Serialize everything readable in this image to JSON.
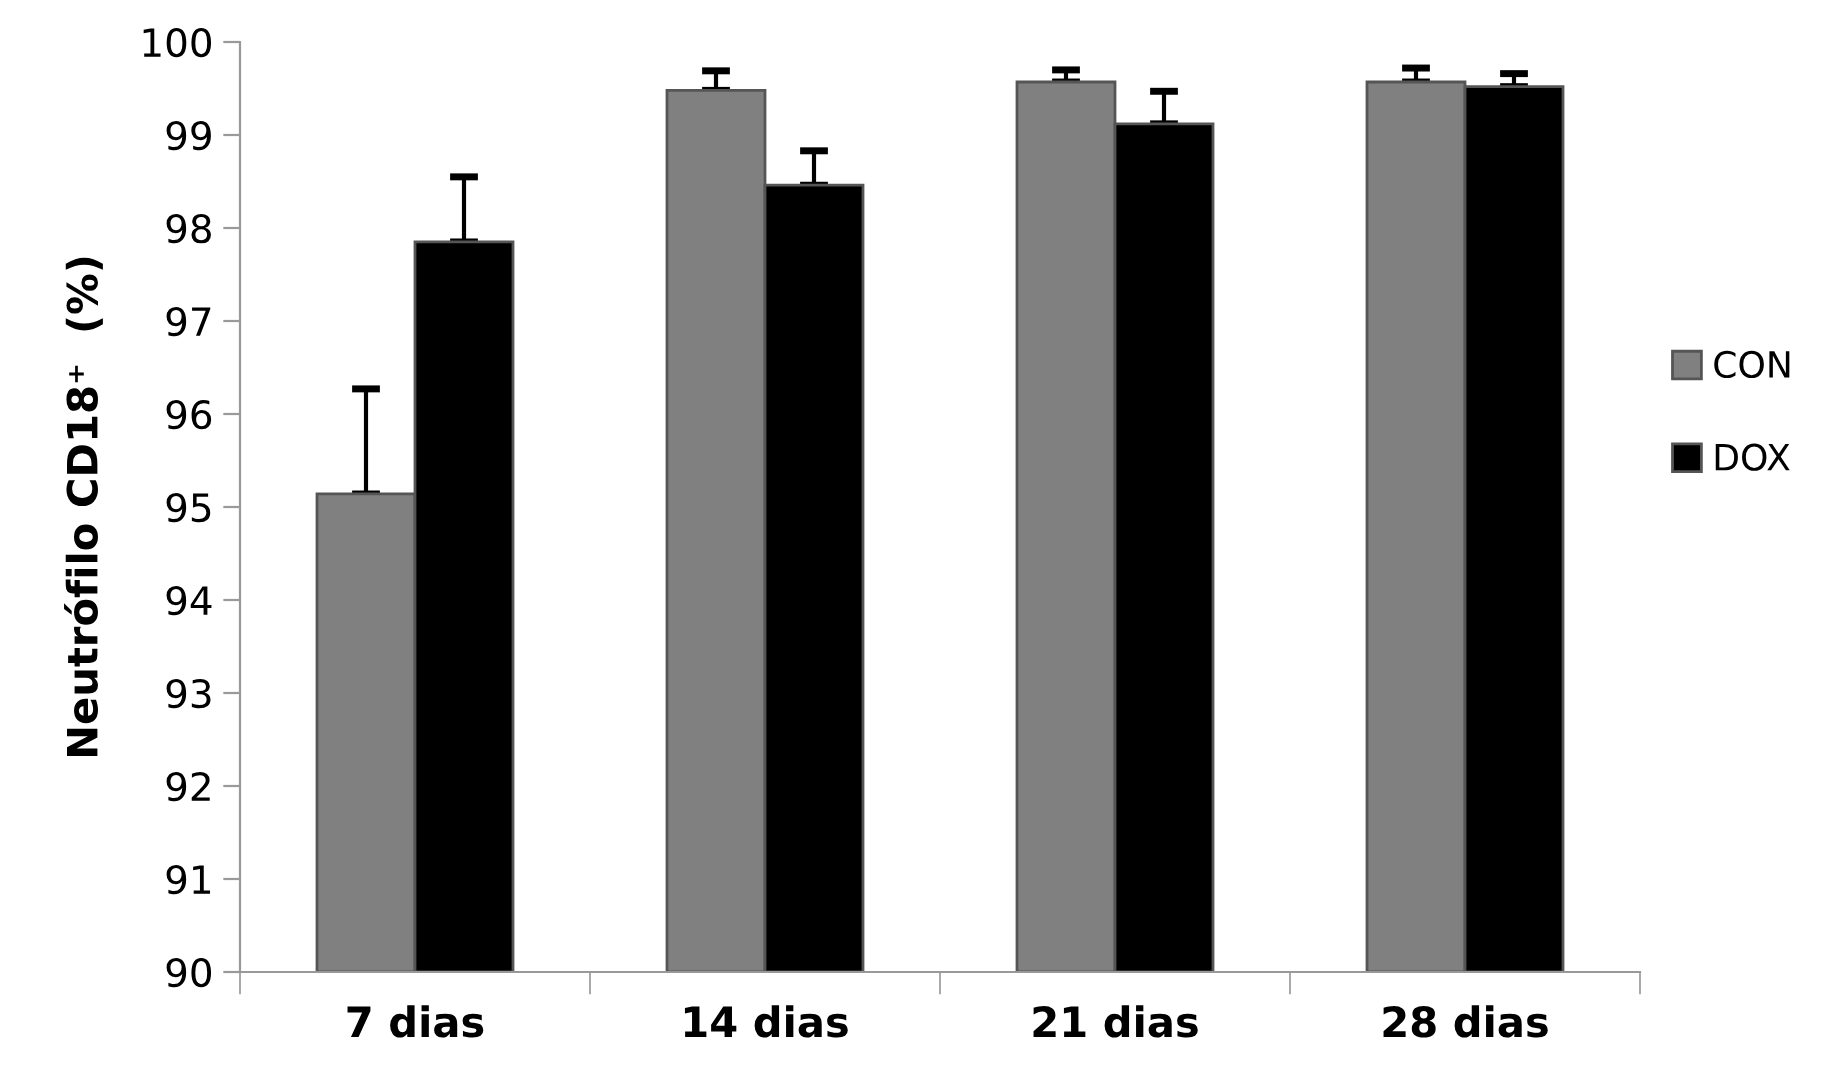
{
  "chart_data": {
    "type": "bar",
    "ylabel": "Neutrófilo CD18⁺  (%)",
    "categories": [
      "7 dias",
      "14 dias",
      "21 dias",
      "28 dias"
    ],
    "series": [
      {
        "name": "CON",
        "color": "#808080",
        "values": [
          95.14,
          99.48,
          99.57,
          99.57
        ],
        "errors": [
          [
            95.14,
            96.27
          ],
          [
            99.48,
            99.69
          ],
          [
            99.57,
            99.7
          ],
          [
            99.57,
            99.72
          ]
        ]
      },
      {
        "name": "DOX",
        "color": "#000000",
        "values": [
          97.85,
          98.46,
          99.12,
          99.52
        ],
        "errors": [
          [
            97.85,
            98.55
          ],
          [
            98.46,
            98.83
          ],
          [
            99.12,
            99.47
          ],
          [
            99.52,
            99.66
          ]
        ]
      }
    ],
    "ylim": [
      90,
      100
    ],
    "yticks": [
      90,
      91,
      92,
      93,
      94,
      95,
      96,
      97,
      98,
      99,
      100
    ],
    "grid": false,
    "legend": "right"
  }
}
